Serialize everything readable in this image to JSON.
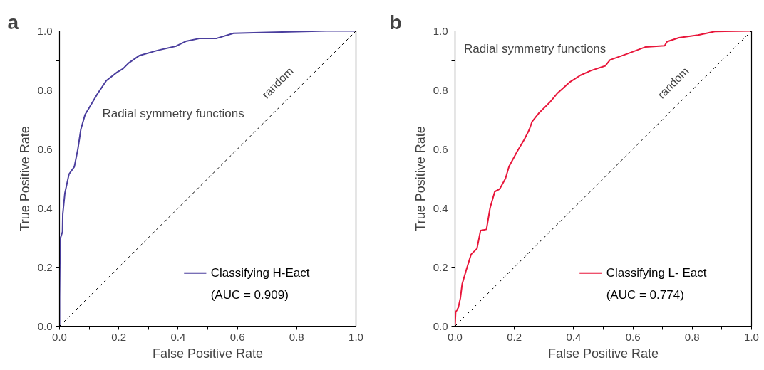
{
  "chart_data": [
    {
      "type": "line",
      "title": "a",
      "xlabel": "False Positive Rate",
      "ylabel": "True Positive Rate",
      "xlim": [
        0,
        1
      ],
      "ylim": [
        0,
        1
      ],
      "xticks": [
        {
          "value": 0,
          "label": "0.0"
        },
        {
          "value": 0.1,
          "label": null
        },
        {
          "value": 0.2,
          "label": "0.2"
        },
        {
          "value": 0.3,
          "label": null
        },
        {
          "value": 0.4,
          "label": "0.4"
        },
        {
          "value": 0.5,
          "label": null
        },
        {
          "value": 0.6,
          "label": "0.6"
        },
        {
          "value": 0.7,
          "label": null
        },
        {
          "value": 0.8,
          "label": "0.8"
        },
        {
          "value": 0.9,
          "label": null
        },
        {
          "value": 1,
          "label": "1.0"
        }
      ],
      "yticks": [
        {
          "value": 0,
          "label": "0.0"
        },
        {
          "value": 0.1,
          "label": null
        },
        {
          "value": 0.2,
          "label": "0.2"
        },
        {
          "value": 0.3,
          "label": null
        },
        {
          "value": 0.4,
          "label": "0.4"
        },
        {
          "value": 0.5,
          "label": null
        },
        {
          "value": 0.6,
          "label": "0.6"
        },
        {
          "value": 0.7,
          "label": null
        },
        {
          "value": 0.8,
          "label": "0.8"
        },
        {
          "value": 0.9,
          "label": null
        },
        {
          "value": 1,
          "label": "1.0"
        }
      ],
      "grid": false,
      "legend": "bottom right",
      "annotations": [
        "Radial symmetry functions",
        "random"
      ],
      "series": [
        {
          "name": "Classifying H-Eact\n(AUC = 0.909)",
          "color": "#4b3f9e",
          "line_style": "solid",
          "x": [
            0,
            0,
            0.002,
            0.01,
            0.011,
            0.018,
            0.032,
            0.05,
            0.062,
            0.072,
            0.086,
            0.1,
            0.126,
            0.158,
            0.194,
            0.214,
            0.234,
            0.27,
            0.33,
            0.394,
            0.426,
            0.474,
            0.53,
            0.587,
            0.7,
            0.9,
            1.0
          ],
          "values": [
            0,
            0.098,
            0.295,
            0.32,
            0.38,
            0.45,
            0.515,
            0.54,
            0.6,
            0.667,
            0.716,
            0.74,
            0.784,
            0.832,
            0.86,
            0.872,
            0.892,
            0.917,
            0.934,
            0.949,
            0.965,
            0.975,
            0.975,
            0.992,
            0.995,
            1.0,
            1.0
          ]
        },
        {
          "type": "line",
          "color": "#000000",
          "line_style": "dashed",
          "x": [
            0,
            1
          ],
          "values": [
            0,
            1
          ]
        }
      ]
    },
    {
      "type": "line",
      "title": "b",
      "xlabel": "False Positive Rate",
      "ylabel": "True Positive Rate",
      "xlim": [
        0,
        1
      ],
      "ylim": [
        0,
        1
      ],
      "xticks": [
        {
          "value": 0,
          "label": "0.0"
        },
        {
          "value": 0.1,
          "label": null
        },
        {
          "value": 0.2,
          "label": "0.2"
        },
        {
          "value": 0.3,
          "label": null
        },
        {
          "value": 0.4,
          "label": "0.4"
        },
        {
          "value": 0.5,
          "label": null
        },
        {
          "value": 0.6,
          "label": "0.6"
        },
        {
          "value": 0.7,
          "label": null
        },
        {
          "value": 0.8,
          "label": "0.8"
        },
        {
          "value": 0.9,
          "label": null
        },
        {
          "value": 1,
          "label": "1.0"
        }
      ],
      "yticks": [
        {
          "value": 0,
          "label": "0.0"
        },
        {
          "value": 0.1,
          "label": null
        },
        {
          "value": 0.2,
          "label": "0.2"
        },
        {
          "value": 0.3,
          "label": null
        },
        {
          "value": 0.4,
          "label": "0.4"
        },
        {
          "value": 0.5,
          "label": null
        },
        {
          "value": 0.6,
          "label": "0.6"
        },
        {
          "value": 0.7,
          "label": null
        },
        {
          "value": 0.8,
          "label": "0.8"
        },
        {
          "value": 0.9,
          "label": null
        },
        {
          "value": 1,
          "label": "1.0"
        }
      ],
      "grid": false,
      "legend": "bottom right",
      "annotations": [
        "Radial symmetry functions",
        "random"
      ],
      "series": [
        {
          "name": "Classifying L- Eact\n(AUC = 0.774)",
          "color": "#e8173b",
          "line_style": "solid",
          "x": [
            0,
            0.002,
            0.011,
            0.018,
            0.024,
            0.038,
            0.054,
            0.074,
            0.086,
            0.106,
            0.118,
            0.134,
            0.15,
            0.17,
            0.182,
            0.21,
            0.234,
            0.25,
            0.26,
            0.282,
            0.322,
            0.346,
            0.386,
            0.423,
            0.459,
            0.507,
            0.523,
            0.579,
            0.643,
            0.707,
            0.715,
            0.755,
            0.82,
            0.876,
            1.0
          ],
          "values": [
            0,
            0.047,
            0.063,
            0.095,
            0.143,
            0.191,
            0.243,
            0.263,
            0.324,
            0.328,
            0.4,
            0.456,
            0.464,
            0.5,
            0.541,
            0.593,
            0.633,
            0.665,
            0.693,
            0.721,
            0.761,
            0.79,
            0.826,
            0.85,
            0.866,
            0.882,
            0.902,
            0.922,
            0.946,
            0.95,
            0.964,
            0.977,
            0.986,
            0.998,
            1.0
          ]
        },
        {
          "type": "line",
          "color": "#000000",
          "line_style": "dashed",
          "x": [
            0,
            1
          ],
          "values": [
            0,
            1
          ]
        }
      ]
    }
  ]
}
